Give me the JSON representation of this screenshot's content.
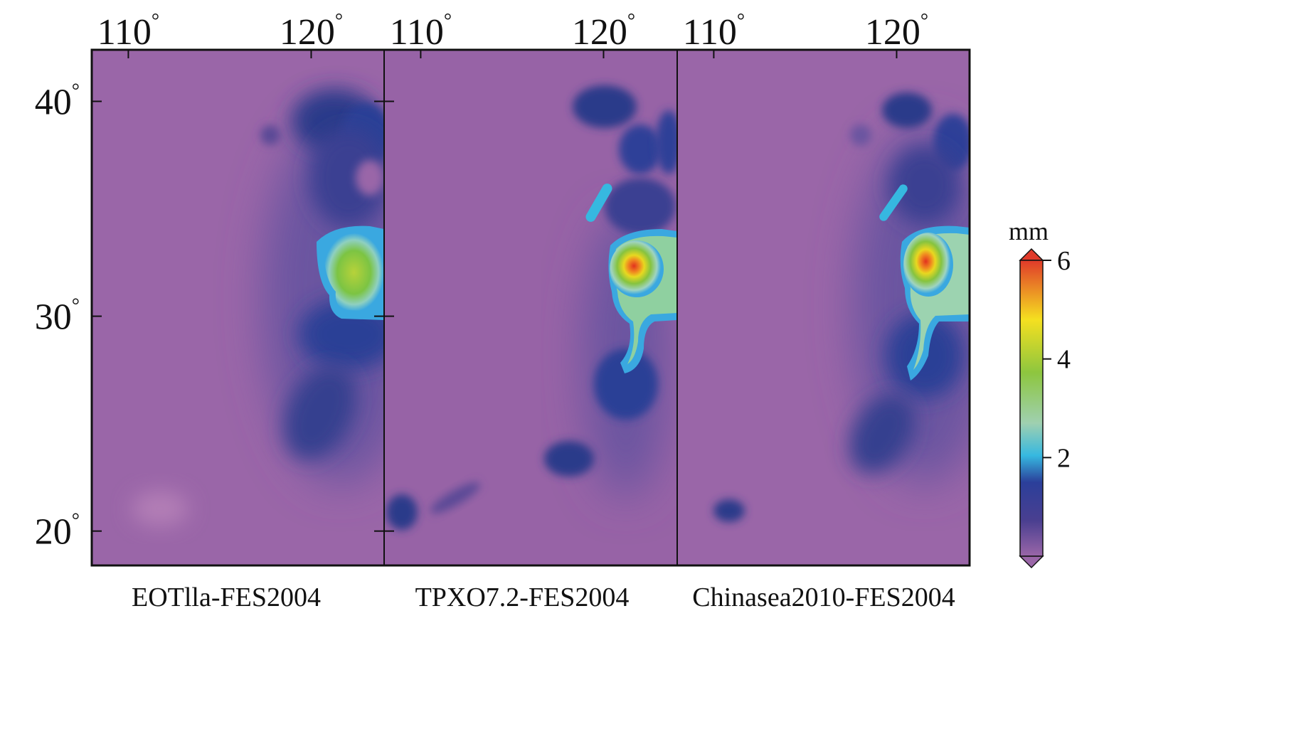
{
  "figure": {
    "longitude_ticks": [
      {
        "label": "110",
        "lon": 110
      },
      {
        "label": "120",
        "lon": 120
      }
    ],
    "latitude_ticks": [
      {
        "label": "40",
        "lat": 40
      },
      {
        "label": "30",
        "lat": 30
      },
      {
        "label": "20",
        "lat": 20
      }
    ],
    "degree_symbol": "°",
    "extent": {
      "lon_min": 108,
      "lon_max": 124,
      "lat_min": 18.4,
      "lat_max": 42.4
    },
    "panels": [
      {
        "title": "EOTlla-FES2004"
      },
      {
        "title": "TPXO7.2-FES2004"
      },
      {
        "title": "Chinasea2010-FES2004"
      }
    ],
    "colorbar": {
      "unit": "mm",
      "min": 0,
      "max": 6,
      "tick_labels": [
        {
          "label": "6",
          "value": 6
        },
        {
          "label": "4",
          "value": 4
        },
        {
          "label": "2",
          "value": 2
        }
      ],
      "extend": "both",
      "colors": {
        "c0": "#9a66a8",
        "c1": "#4a3f90",
        "c2": "#2b3f9a",
        "c3": "#36b8e0",
        "c4": "#8dc63f",
        "c5": "#f5e020",
        "c6": "#e03a2a"
      }
    },
    "background_color": "#9763a6"
  }
}
